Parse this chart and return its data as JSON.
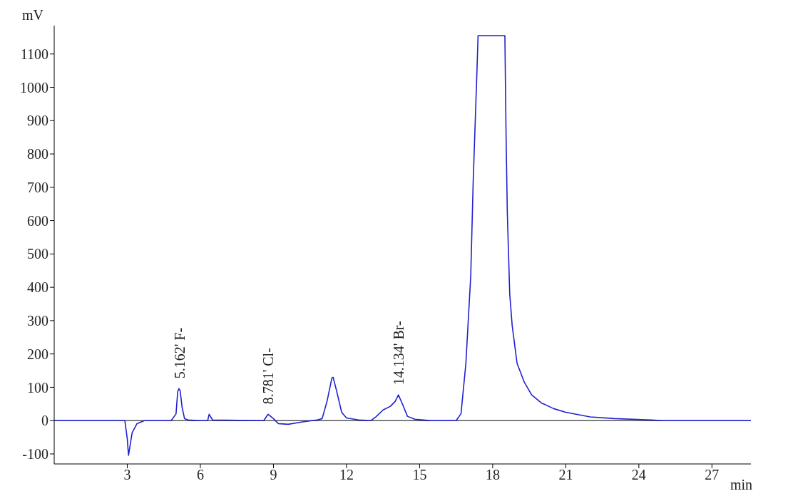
{
  "chart_data": {
    "type": "line",
    "xlabel": "min",
    "ylabel": "mV",
    "x": [
      0,
      2.9,
      3.0,
      3.05,
      3.2,
      3.4,
      3.7,
      4.8,
      5.0,
      5.07,
      5.12,
      5.17,
      5.25,
      5.35,
      5.5,
      6.0,
      6.3,
      6.36,
      6.5,
      8.6,
      8.78,
      9.0,
      9.2,
      9.6,
      10.2,
      10.8,
      11.0,
      11.2,
      11.4,
      11.45,
      11.6,
      11.8,
      12.0,
      12.5,
      13.0,
      13.2,
      13.5,
      13.8,
      14.0,
      14.13,
      14.3,
      14.5,
      14.8,
      15.5,
      16.5,
      16.7,
      16.9,
      17.1,
      17.2,
      17.35,
      17.4,
      18.5,
      18.55,
      18.6,
      18.7,
      18.8,
      19.0,
      19.3,
      19.6,
      20.0,
      20.5,
      21.0,
      22.0,
      23.0,
      24.5,
      25.0,
      28.6
    ],
    "series": [
      {
        "color": "#2020d0",
        "values": [
          0,
          0,
          -55,
          -104,
          -36,
          -9,
          0,
          0,
          20,
          87,
          96,
          90,
          40,
          6,
          2,
          0,
          0,
          19,
          2,
          0,
          19,
          6,
          -9,
          -11,
          -4,
          2,
          6,
          58,
          128,
          130,
          87,
          25,
          8,
          2,
          0,
          11,
          32,
          43,
          58,
          77,
          49,
          13,
          4,
          0,
          0,
          21,
          172,
          436,
          719,
          1040,
          1155,
          1155,
          851,
          625,
          379,
          285,
          172,
          115,
          77,
          53,
          36,
          25,
          11,
          6,
          2,
          0,
          0
        ]
      }
    ],
    "xlim": [
      0,
      28.6
    ],
    "xticks": [
      3,
      6,
      9,
      12,
      15,
      18,
      21,
      24,
      27
    ],
    "ylim": [
      -130,
      1185
    ],
    "yticks": [
      -100,
      0,
      100,
      200,
      300,
      400,
      500,
      600,
      700,
      800,
      900,
      1000,
      1100
    ],
    "ref_lines": [
      {
        "axis": "y",
        "value": 0,
        "color": "#000000"
      }
    ],
    "annotations": [
      {
        "text": "5.162' F-",
        "x": 5.162,
        "y": 96
      },
      {
        "text": "8.781' Cl-",
        "x": 8.781,
        "y": 19
      },
      {
        "text": "14.134' Br-",
        "x": 14.134,
        "y": 77
      }
    ],
    "grid": false,
    "legend": false,
    "marker": "none",
    "line_style": "solid"
  }
}
